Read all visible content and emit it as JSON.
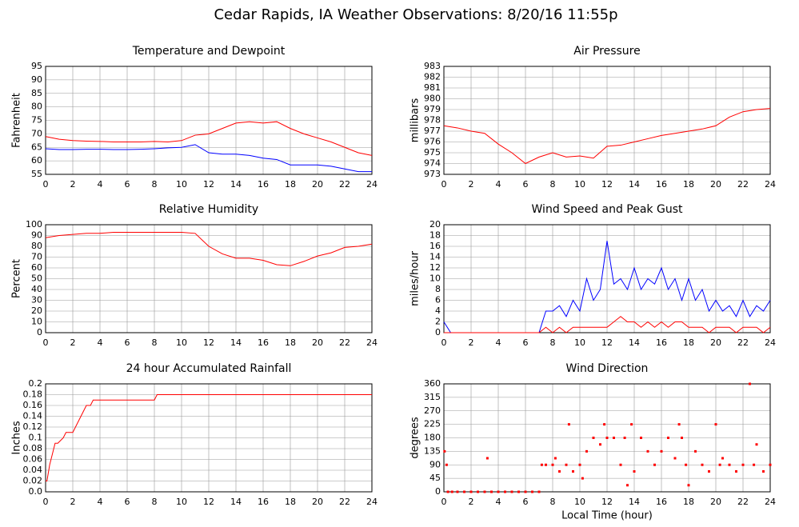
{
  "title": "Cedar Rapids, IA Weather Observations: 8/20/16 11:55p",
  "chart_data": [
    {
      "type": "line",
      "title": "Temperature and Dewpoint",
      "ylabel": "Fahrenheit",
      "x": [
        0,
        1,
        2,
        3,
        4,
        5,
        6,
        7,
        8,
        9,
        10,
        11,
        12,
        13,
        14,
        15,
        16,
        17,
        18,
        19,
        20,
        21,
        22,
        23,
        24
      ],
      "series": [
        {
          "color": "#ff0000",
          "values": [
            69,
            68,
            67.5,
            67.3,
            67.2,
            67,
            67,
            67,
            67.2,
            67,
            67.5,
            69.5,
            70,
            72,
            74,
            74.5,
            74,
            74.5,
            72,
            70,
            68.5,
            67,
            65,
            63,
            62
          ]
        },
        {
          "color": "#0000ff",
          "values": [
            64.5,
            64.2,
            64.2,
            64.3,
            64.3,
            64.2,
            64.2,
            64.3,
            64.5,
            64.8,
            65,
            66,
            63,
            62.5,
            62.5,
            62,
            61,
            60.5,
            58.5,
            58.5,
            58.5,
            58,
            57,
            56,
            56
          ]
        }
      ],
      "xlim": [
        0,
        24
      ],
      "xticks": [
        0,
        2,
        4,
        6,
        8,
        10,
        12,
        14,
        16,
        18,
        20,
        22,
        24
      ],
      "ylim": [
        55,
        95
      ],
      "yticks": [
        55,
        60,
        65,
        70,
        75,
        80,
        85,
        90,
        95
      ],
      "grid": true
    },
    {
      "type": "line",
      "title": "Air Pressure",
      "ylabel": "millibars",
      "x": [
        0,
        1,
        2,
        3,
        4,
        5,
        6,
        7,
        8,
        9,
        10,
        11,
        12,
        13,
        14,
        15,
        16,
        17,
        18,
        19,
        20,
        21,
        22,
        23,
        24
      ],
      "series": [
        {
          "color": "#ff0000",
          "values": [
            977.5,
            977.3,
            977,
            976.8,
            975.8,
            975,
            974,
            974.6,
            975,
            974.6,
            974.7,
            974.5,
            975.6,
            975.7,
            976,
            976.3,
            976.6,
            976.8,
            977,
            977.2,
            977.5,
            978.3,
            978.8,
            979,
            979.1
          ]
        }
      ],
      "xlim": [
        0,
        24
      ],
      "xticks": [
        0,
        2,
        4,
        6,
        8,
        10,
        12,
        14,
        16,
        18,
        20,
        22,
        24
      ],
      "ylim": [
        973,
        983
      ],
      "yticks": [
        973,
        974,
        975,
        976,
        977,
        978,
        979,
        980,
        981,
        982,
        983
      ],
      "grid": true
    },
    {
      "type": "line",
      "title": "Relative Humidity",
      "ylabel": "Percent",
      "x": [
        0,
        1,
        2,
        3,
        4,
        5,
        6,
        7,
        8,
        9,
        10,
        11,
        12,
        13,
        14,
        15,
        16,
        17,
        18,
        19,
        20,
        21,
        22,
        23,
        24
      ],
      "series": [
        {
          "color": "#ff0000",
          "values": [
            88,
            90,
            91,
            92,
            92,
            93,
            93,
            93,
            93,
            93,
            93,
            92,
            80,
            73,
            69,
            69,
            67,
            63,
            62,
            66,
            71,
            74,
            79,
            80,
            82
          ]
        }
      ],
      "xlim": [
        0,
        24
      ],
      "xticks": [
        0,
        2,
        4,
        6,
        8,
        10,
        12,
        14,
        16,
        18,
        20,
        22,
        24
      ],
      "ylim": [
        0,
        100
      ],
      "yticks": [
        0,
        10,
        20,
        30,
        40,
        50,
        60,
        70,
        80,
        90,
        100
      ],
      "grid": true
    },
    {
      "type": "line",
      "title": "Wind Speed and Peak Gust",
      "ylabel": "miles/hour",
      "x": [
        0,
        0.5,
        1,
        1.5,
        2,
        2.5,
        3,
        3.5,
        4,
        4.5,
        5,
        5.5,
        6,
        6.5,
        7,
        7.5,
        8,
        8.5,
        9,
        9.5,
        10,
        10.5,
        11,
        11.5,
        12,
        12.5,
        13,
        13.5,
        14,
        14.5,
        15,
        15.5,
        16,
        16.5,
        17,
        17.5,
        18,
        18.5,
        19,
        19.5,
        20,
        20.5,
        21,
        21.5,
        22,
        22.5,
        23,
        23.5,
        24
      ],
      "series": [
        {
          "color": "#0000ff",
          "values": [
            2,
            0,
            0,
            0,
            0,
            0,
            0,
            0,
            0,
            0,
            0,
            0,
            0,
            0,
            0,
            4,
            4,
            5,
            3,
            6,
            4,
            10,
            6,
            8,
            17,
            9,
            10,
            8,
            12,
            8,
            10,
            9,
            12,
            8,
            10,
            6,
            10,
            6,
            8,
            4,
            6,
            4,
            5,
            3,
            6,
            3,
            5,
            4,
            6
          ]
        },
        {
          "color": "#ff0000",
          "values": [
            0,
            0,
            0,
            0,
            0,
            0,
            0,
            0,
            0,
            0,
            0,
            0,
            0,
            0,
            0,
            1,
            0,
            1,
            0,
            1,
            1,
            1,
            1,
            1,
            1,
            2,
            3,
            2,
            2,
            1,
            2,
            1,
            2,
            1,
            2,
            2,
            1,
            1,
            1,
            0,
            1,
            1,
            1,
            0,
            1,
            1,
            1,
            0,
            1
          ]
        }
      ],
      "xlim": [
        0,
        24
      ],
      "xticks": [
        0,
        2,
        4,
        6,
        8,
        10,
        12,
        14,
        16,
        18,
        20,
        22,
        24
      ],
      "ylim": [
        0,
        20
      ],
      "yticks": [
        0,
        2,
        4,
        6,
        8,
        10,
        12,
        14,
        16,
        18,
        20
      ],
      "grid": true
    },
    {
      "type": "line",
      "title": "24 hour Accumulated Rainfall",
      "ylabel": "Inches",
      "x": [
        0,
        0.1,
        0.3,
        0.5,
        0.7,
        0.9,
        1.3,
        1.5,
        2,
        2.8,
        3,
        3.3,
        3.5,
        8,
        8.2,
        24
      ],
      "series": [
        {
          "color": "#ff0000",
          "values": [
            0.02,
            0.02,
            0.05,
            0.07,
            0.09,
            0.09,
            0.1,
            0.11,
            0.11,
            0.15,
            0.16,
            0.16,
            0.17,
            0.17,
            0.18,
            0.18
          ]
        }
      ],
      "xlim": [
        0,
        24
      ],
      "xticks": [
        0,
        2,
        4,
        6,
        8,
        10,
        12,
        14,
        16,
        18,
        20,
        22,
        24
      ],
      "ylim": [
        0,
        0.2
      ],
      "yticks": [
        {
          "value": 0,
          "label": "0.0"
        },
        0.02,
        0.04,
        0.06,
        0.08,
        0.1,
        0.12,
        0.14,
        0.16,
        0.18,
        0.2
      ],
      "grid": true
    },
    {
      "type": "scatter",
      "title": "Wind Direction",
      "ylabel": "degrees",
      "xlabel": "Local Time (hour)",
      "color": "#ff0000",
      "x": [
        0.05,
        0.2,
        0.3,
        0.6,
        1,
        1.5,
        2,
        2.5,
        3,
        3.2,
        3.5,
        4,
        4.5,
        5,
        5.5,
        6,
        6.5,
        7,
        7.2,
        7.5,
        8,
        8.2,
        8.5,
        9,
        9.2,
        9.5,
        10,
        10.2,
        10.5,
        11,
        11.5,
        11.8,
        12,
        12.5,
        13,
        13.3,
        13.5,
        13.8,
        14,
        14.5,
        15,
        15.5,
        16,
        16.5,
        17,
        17.3,
        17.5,
        17.8,
        18,
        18.5,
        19,
        19.5,
        20,
        20.3,
        20.5,
        21,
        21.5,
        22,
        22.5,
        22.8,
        23,
        23.5,
        24
      ],
      "values": [
        135,
        90,
        0,
        0,
        0,
        0,
        0,
        0,
        0,
        112,
        0,
        0,
        0,
        0,
        0,
        0,
        0,
        0,
        90,
        90,
        90,
        112,
        68,
        90,
        225,
        68,
        90,
        45,
        135,
        180,
        158,
        225,
        180,
        180,
        90,
        180,
        22,
        225,
        68,
        180,
        135,
        90,
        135,
        180,
        112,
        225,
        180,
        90,
        22,
        135,
        90,
        68,
        225,
        90,
        112,
        90,
        68,
        90,
        360,
        90,
        158,
        68,
        90
      ],
      "xlim": [
        0,
        24
      ],
      "xticks": [
        0,
        2,
        4,
        6,
        8,
        10,
        12,
        14,
        16,
        18,
        20,
        22,
        24
      ],
      "ylim": [
        0,
        360
      ],
      "yticks": [
        0,
        45,
        90,
        135,
        180,
        225,
        270,
        315,
        360
      ],
      "grid": true
    }
  ]
}
